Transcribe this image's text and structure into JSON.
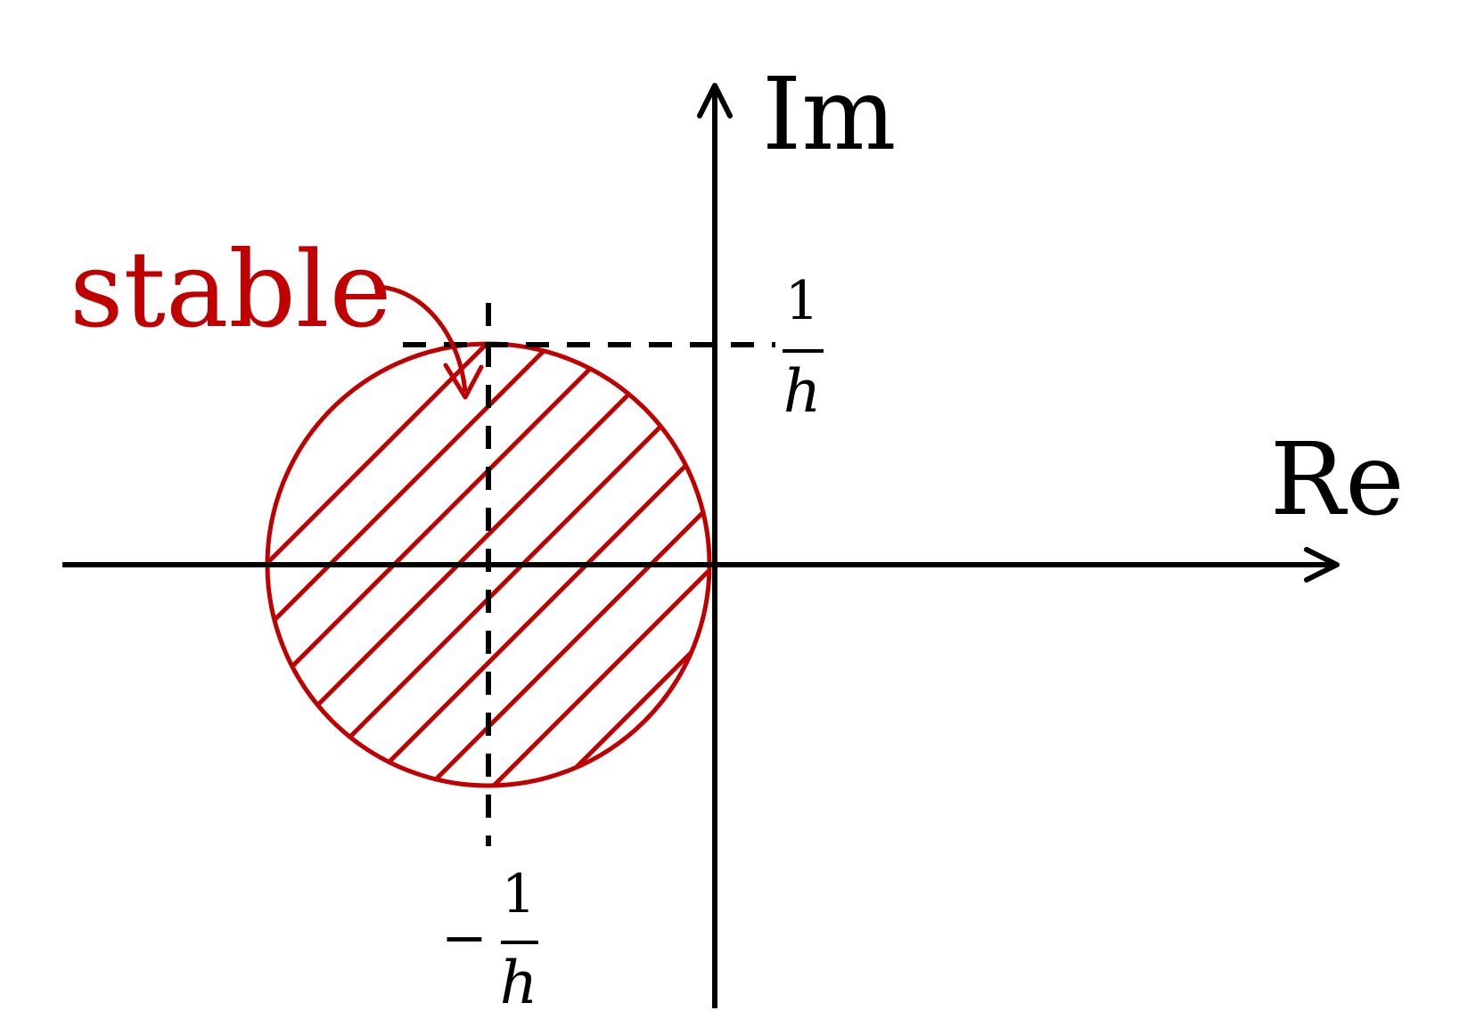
{
  "axes": {
    "imag_label": "Im",
    "real_label": "Re"
  },
  "region": {
    "label": "stable",
    "color": "#c00000"
  },
  "ticks": {
    "imag": {
      "numerator": "1",
      "denominator": "h"
    },
    "real": {
      "sign": "−",
      "numerator": "1",
      "denominator": "h"
    }
  },
  "colors": {
    "axis": "#000000",
    "region": "#c00000"
  }
}
